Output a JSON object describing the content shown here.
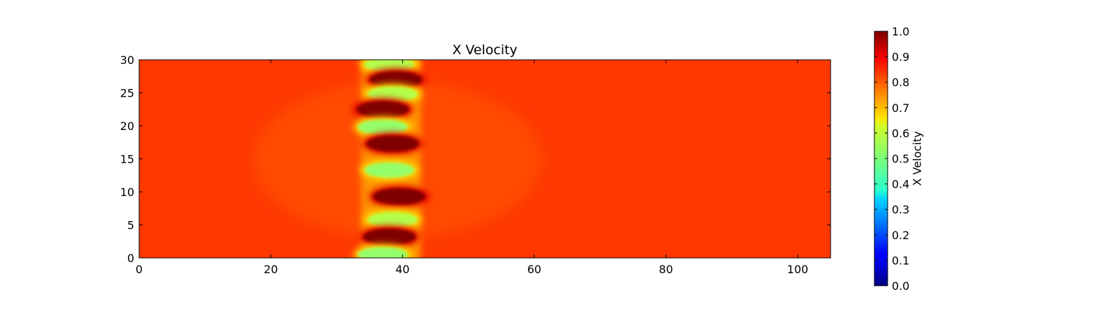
{
  "chart_data": {
    "type": "heatmap",
    "title": "X Velocity",
    "xlabel": "",
    "ylabel": "",
    "xlim": [
      0,
      105
    ],
    "ylim": [
      0,
      30
    ],
    "x_ticks": [
      0,
      20,
      40,
      60,
      80,
      100
    ],
    "y_ticks": [
      0,
      5,
      10,
      15,
      20,
      25,
      30
    ],
    "background_value": 0.82,
    "colormap": "jet",
    "colorbar": {
      "label": "X Velocity",
      "range": [
        0.0,
        1.0
      ],
      "ticks": [
        "0.0",
        "0.1",
        "0.2",
        "0.3",
        "0.4",
        "0.5",
        "0.6",
        "0.7",
        "0.8",
        "0.9",
        "1.0"
      ]
    },
    "features": [
      {
        "x": 38.0,
        "y": 29.3,
        "value": 0.55
      },
      {
        "x": 39.0,
        "y": 27.0,
        "value": 1.0
      },
      {
        "x": 38.5,
        "y": 24.8,
        "value": 0.55
      },
      {
        "x": 37.0,
        "y": 22.5,
        "value": 1.0
      },
      {
        "x": 37.0,
        "y": 19.8,
        "value": 0.52
      },
      {
        "x": 38.5,
        "y": 17.3,
        "value": 1.0
      },
      {
        "x": 38.0,
        "y": 13.3,
        "value": 0.52
      },
      {
        "x": 39.5,
        "y": 9.3,
        "value": 1.0
      },
      {
        "x": 38.5,
        "y": 5.8,
        "value": 0.55
      },
      {
        "x": 38.0,
        "y": 3.2,
        "value": 1.0
      },
      {
        "x": 37.0,
        "y": 0.5,
        "value": 0.52
      }
    ],
    "grid": false,
    "legend": "colorbar-right"
  }
}
